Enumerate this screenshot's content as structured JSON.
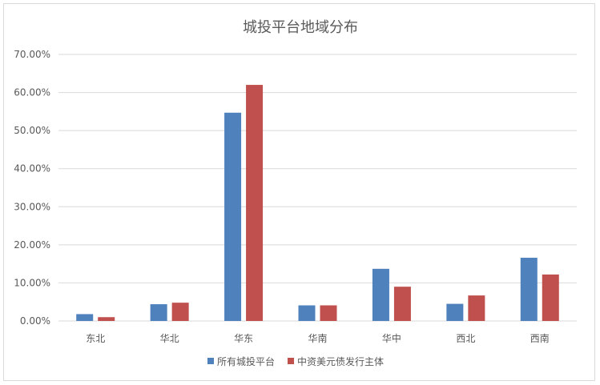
{
  "chart_data": {
    "type": "bar",
    "title": "城投平台地域分布",
    "categories": [
      "东北",
      "华北",
      "华东",
      "华南",
      "华中",
      "西北",
      "西南"
    ],
    "y_ticks": [
      "0.00%",
      "10.00%",
      "20.00%",
      "30.00%",
      "40.00%",
      "50.00%",
      "60.00%",
      "70.00%"
    ],
    "ylim": [
      0,
      70
    ],
    "grid": true,
    "legend_position": "bottom",
    "series": [
      {
        "name": "所有城投平台",
        "color": "#4f81bd",
        "values": [
          1.8,
          4.4,
          54.7,
          4.1,
          13.7,
          4.5,
          16.6
        ]
      },
      {
        "name": "中资美元债发行主体",
        "color": "#c0504d",
        "values": [
          1.0,
          4.8,
          62.0,
          4.1,
          9.0,
          6.7,
          12.2
        ]
      }
    ]
  }
}
